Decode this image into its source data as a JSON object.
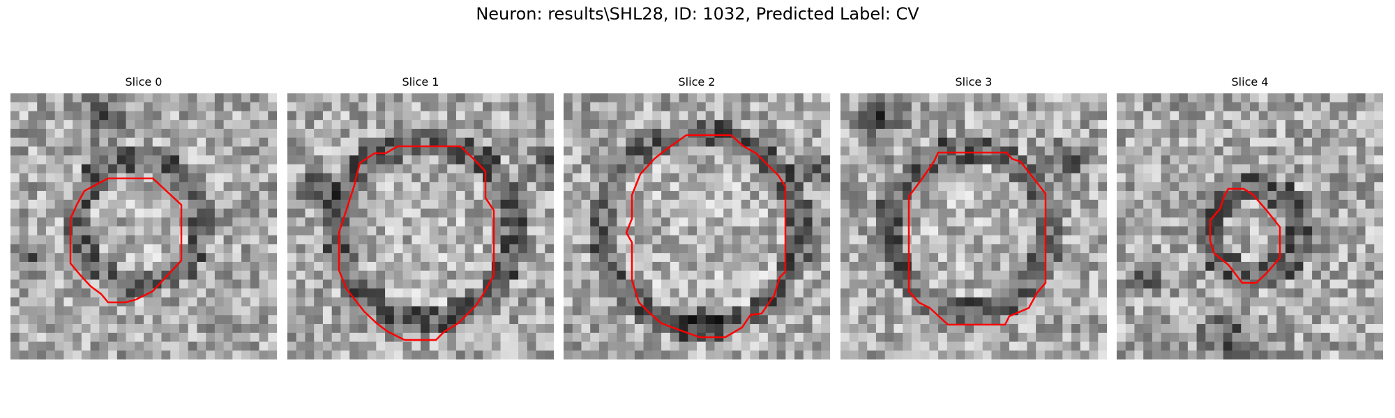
{
  "figure": {
    "title": "Neuron: results\\SHL28, ID: 1032, Predicted Label: CV",
    "contour_color": "#ff0000",
    "colormap": "grayscale"
  },
  "slices": [
    {
      "title": "Slice 0"
    },
    {
      "title": "Slice 1"
    },
    {
      "title": "Slice 2"
    },
    {
      "title": "Slice 3"
    },
    {
      "title": "Slice 4"
    }
  ]
}
